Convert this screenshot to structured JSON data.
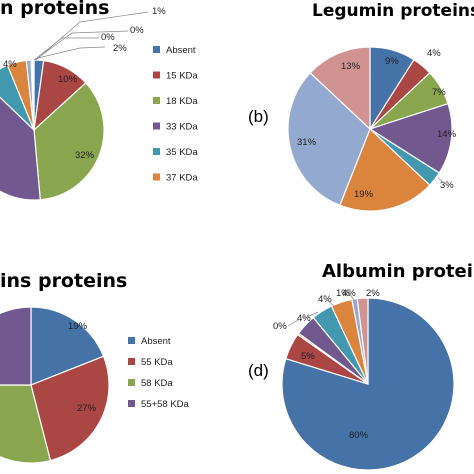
{
  "colors": {
    "absent": "#4572A7",
    "red": "#AA4643",
    "green": "#89A54E",
    "purple": "#71588F",
    "teal": "#4198AF",
    "orange": "#DB843D",
    "lightblue": "#93A9CF",
    "pink": "#D19392",
    "lightgreen": "#B9CD96"
  },
  "chart_data": [
    {
      "type": "pie",
      "title": "n proteins",
      "slices": [
        {
          "label": "Absent",
          "value": 2,
          "color": "#4572A7"
        },
        {
          "label": "15 KDa",
          "value": 10,
          "color": "#AA4643"
        },
        {
          "label": "18 KDa",
          "value": 32,
          "color": "#89A54E"
        },
        {
          "label": "33 KDa",
          "value": 35,
          "color": "#71588F"
        },
        {
          "label": "35 KDa",
          "value": 6,
          "color": "#4198AF"
        },
        {
          "label": "37 KDa",
          "value": 4,
          "color": "#DB843D"
        },
        {
          "label": "",
          "value": 1,
          "color": "#93A9CF"
        },
        {
          "label": "",
          "value": 0.3,
          "color": "#D19392"
        },
        {
          "label": "",
          "value": 0.3,
          "color": "#B9CD96"
        }
      ],
      "data_labels": [
        "2%",
        "10%",
        "32%",
        "",
        "",
        "4%",
        "1%",
        "0%",
        "0%"
      ],
      "legend": [
        "Absent",
        "15 KDa",
        "18 KDa",
        "33 KDa",
        "35 KDa",
        "37 KDa"
      ]
    },
    {
      "type": "pie",
      "title": "Legumin proteins",
      "panel_label": "(b)",
      "slices": [
        {
          "value": 9,
          "color": "#4572A7"
        },
        {
          "value": 4,
          "color": "#AA4643"
        },
        {
          "value": 7,
          "color": "#89A54E"
        },
        {
          "value": 14,
          "color": "#71588F"
        },
        {
          "value": 3,
          "color": "#4198AF"
        },
        {
          "value": 19,
          "color": "#DB843D"
        },
        {
          "value": 31,
          "color": "#93A9CF"
        },
        {
          "value": 13,
          "color": "#D19392"
        }
      ],
      "data_labels": [
        "9%",
        "4%",
        "7%",
        "14%",
        "3%",
        "19%",
        "31%",
        "13%"
      ]
    },
    {
      "type": "pie",
      "title": "ins proteins",
      "slices": [
        {
          "label": "Absent",
          "value": 19,
          "color": "#4572A7"
        },
        {
          "label": "55 KDa",
          "value": 27,
          "color": "#AA4643"
        },
        {
          "label": "58 KDa",
          "value": 29,
          "color": "#89A54E"
        },
        {
          "label": "55+58 KDa",
          "value": 25,
          "color": "#71588F"
        }
      ],
      "data_labels": [
        "19%",
        "27%",
        "",
        ""
      ],
      "legend": [
        "Absent",
        "55 KDa",
        "58 KDa",
        "55+58 KDa"
      ]
    },
    {
      "type": "pie",
      "title": "Albumin proteins",
      "panel_label": "(d)",
      "slices": [
        {
          "value": 80,
          "color": "#4572A7"
        },
        {
          "value": 5,
          "color": "#AA4643"
        },
        {
          "value": 0.3,
          "color": "#89A54E"
        },
        {
          "value": 4,
          "color": "#71588F"
        },
        {
          "value": 4,
          "color": "#4198AF"
        },
        {
          "value": 4,
          "color": "#DB843D"
        },
        {
          "value": 1,
          "color": "#93A9CF"
        },
        {
          "value": 2,
          "color": "#D19392"
        }
      ],
      "data_labels": [
        "80%",
        "5%",
        "0%",
        "4%",
        "4%",
        "4%",
        "1%",
        "2%"
      ]
    }
  ]
}
